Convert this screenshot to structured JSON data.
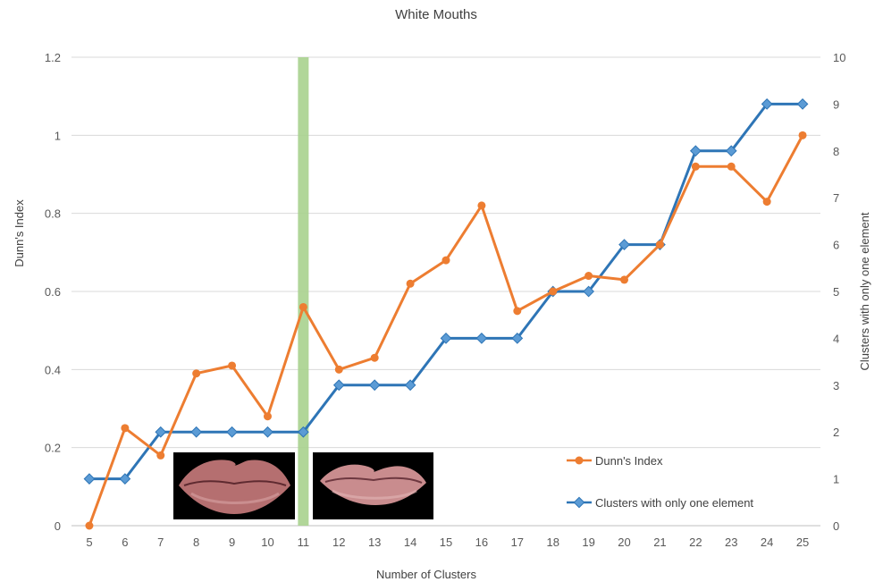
{
  "chart_data": {
    "type": "line",
    "title": "White Mouths",
    "xlabel": "Number of Clusters",
    "ylabel": "Dunn's Index",
    "ylabel_right": "Clusters with only one element",
    "categories": [
      "5",
      "6",
      "7",
      "8",
      "9",
      "10",
      "11",
      "12",
      "13",
      "14",
      "15",
      "16",
      "17",
      "18",
      "19",
      "20",
      "21",
      "22",
      "23",
      "24",
      "25"
    ],
    "ylim": [
      0,
      1.2
    ],
    "y_ticks": [
      "0",
      "0.2",
      "0.4",
      "0.6",
      "0.8",
      "1",
      "1.2"
    ],
    "ylim_right": [
      0,
      10
    ],
    "y_ticks_right": [
      "0",
      "1",
      "2",
      "3",
      "4",
      "5",
      "6",
      "7",
      "8",
      "9",
      "10"
    ],
    "series": [
      {
        "name": "Dunn's Index",
        "axis": "left",
        "color": "#ED7D31",
        "marker": "circle",
        "values": [
          0.0,
          0.25,
          0.18,
          0.39,
          0.41,
          0.28,
          0.56,
          0.4,
          0.43,
          0.62,
          0.68,
          0.82,
          0.55,
          0.6,
          0.64,
          0.63,
          0.72,
          0.92,
          0.92,
          0.83,
          1.0
        ]
      },
      {
        "name": "Clusters with only one element",
        "axis": "right",
        "color": "#2E75B6",
        "marker": "diamond",
        "values": [
          1,
          1,
          2,
          2,
          2,
          2,
          2,
          3,
          3,
          3,
          4,
          4,
          4,
          5,
          5,
          6,
          6,
          8,
          8,
          9,
          9
        ]
      }
    ],
    "highlight": {
      "x": "11",
      "color": "#A9D18E"
    },
    "grid": true,
    "legend": "bottom-right",
    "images": [
      "mouth-sample-left",
      "mouth-sample-right"
    ]
  }
}
